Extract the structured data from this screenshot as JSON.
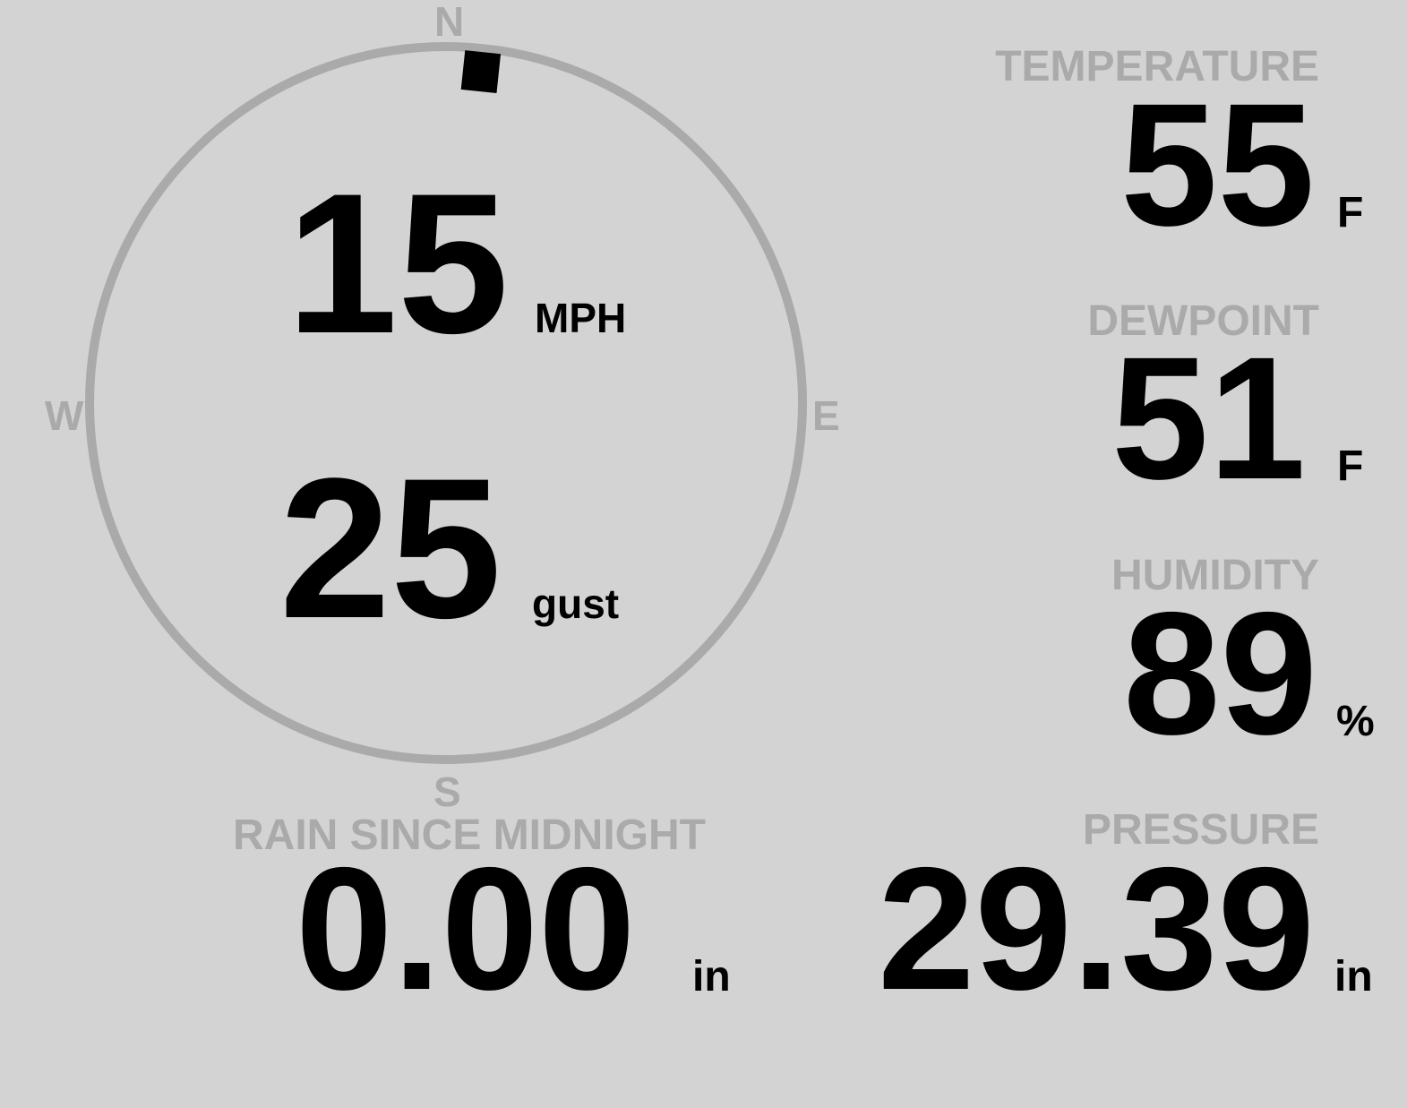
{
  "colors": {
    "background": "#d3d3d3",
    "label": "#aaaaaa",
    "value": "#000000",
    "compass_ring": "#aaaaaa"
  },
  "wind": {
    "speed": "15",
    "speed_unit": "MPH",
    "gust": "25",
    "gust_label": "gust",
    "direction_deg": 6,
    "compass": {
      "n": "N",
      "e": "E",
      "s": "S",
      "w": "W"
    }
  },
  "temperature": {
    "label": "TEMPERATURE",
    "value": "55",
    "unit": "F"
  },
  "dewpoint": {
    "label": "DEWPOINT",
    "value": "51",
    "unit": "F"
  },
  "humidity": {
    "label": "HUMIDITY",
    "value": "89",
    "unit": "%"
  },
  "rain": {
    "label": "RAIN SINCE MIDNIGHT",
    "value": "0.00",
    "unit": "in"
  },
  "pressure": {
    "label": "PRESSURE",
    "value": "29.39",
    "unit": "in"
  }
}
